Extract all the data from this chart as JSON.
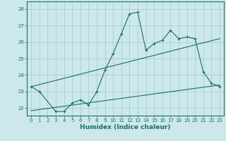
{
  "title": "",
  "xlabel": "Humidex (Indice chaleur)",
  "bg_color": "#cce8ec",
  "grid_color": "#aacdd4",
  "line_color": "#1a6e65",
  "xlim": [
    -0.5,
    23.5
  ],
  "ylim": [
    21.55,
    28.45
  ],
  "xticks": [
    0,
    1,
    2,
    3,
    4,
    5,
    6,
    7,
    8,
    9,
    10,
    11,
    12,
    13,
    14,
    15,
    16,
    17,
    18,
    19,
    20,
    21,
    22,
    23
  ],
  "yticks": [
    22,
    23,
    24,
    25,
    26,
    27,
    28
  ],
  "line1_x": [
    0,
    1,
    3,
    4,
    5,
    6,
    7,
    8,
    9,
    10,
    11,
    12,
    13,
    14,
    15,
    16,
    17,
    18,
    19,
    20,
    21,
    22,
    23
  ],
  "line1_y": [
    23.3,
    23.0,
    21.8,
    21.8,
    22.3,
    22.5,
    22.2,
    23.0,
    24.3,
    25.3,
    26.5,
    27.7,
    27.8,
    25.5,
    25.9,
    26.1,
    26.7,
    26.2,
    26.3,
    26.2,
    24.2,
    23.5,
    23.3
  ],
  "line2_x": [
    0,
    23
  ],
  "line2_y": [
    23.3,
    26.2
  ],
  "line3_x": [
    0,
    23
  ],
  "line3_y": [
    21.85,
    23.4
  ]
}
